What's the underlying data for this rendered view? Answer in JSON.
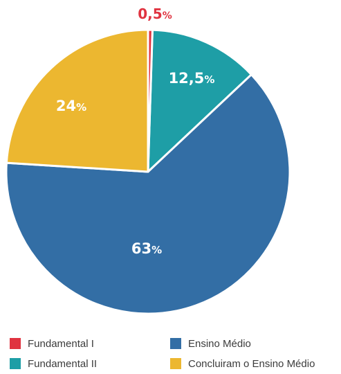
{
  "chart_data": {
    "type": "pie",
    "title": "",
    "categories": [
      "Fundamental I",
      "Fundamental II",
      "Ensino Médio",
      "Concluíram o Ensino Médio"
    ],
    "values": [
      0.5,
      12.5,
      63,
      24
    ],
    "data_labels": [
      {
        "number": "0,5",
        "unit": "%"
      },
      {
        "number": "12,5",
        "unit": "%"
      },
      {
        "number": "63",
        "unit": "%"
      },
      {
        "number": "24",
        "unit": "%"
      }
    ],
    "colors": [
      "#e03340",
      "#1e9ea6",
      "#336ea5",
      "#ecb730"
    ],
    "label_colors": [
      "#e03340",
      "#ffffff",
      "#ffffff",
      "#ffffff"
    ],
    "start_angle_deg": 0,
    "direction": "clockwise",
    "legend": {
      "placement": "bottom",
      "columns": 2,
      "items": [
        {
          "label": "Fundamental I",
          "color": "#e03340"
        },
        {
          "label": "Ensino Médio",
          "color": "#336ea5"
        },
        {
          "label": "Fundamental II",
          "color": "#1e9ea6"
        },
        {
          "label": "Concluiram o Ensino Médio",
          "color": "#ecb730"
        }
      ]
    }
  }
}
